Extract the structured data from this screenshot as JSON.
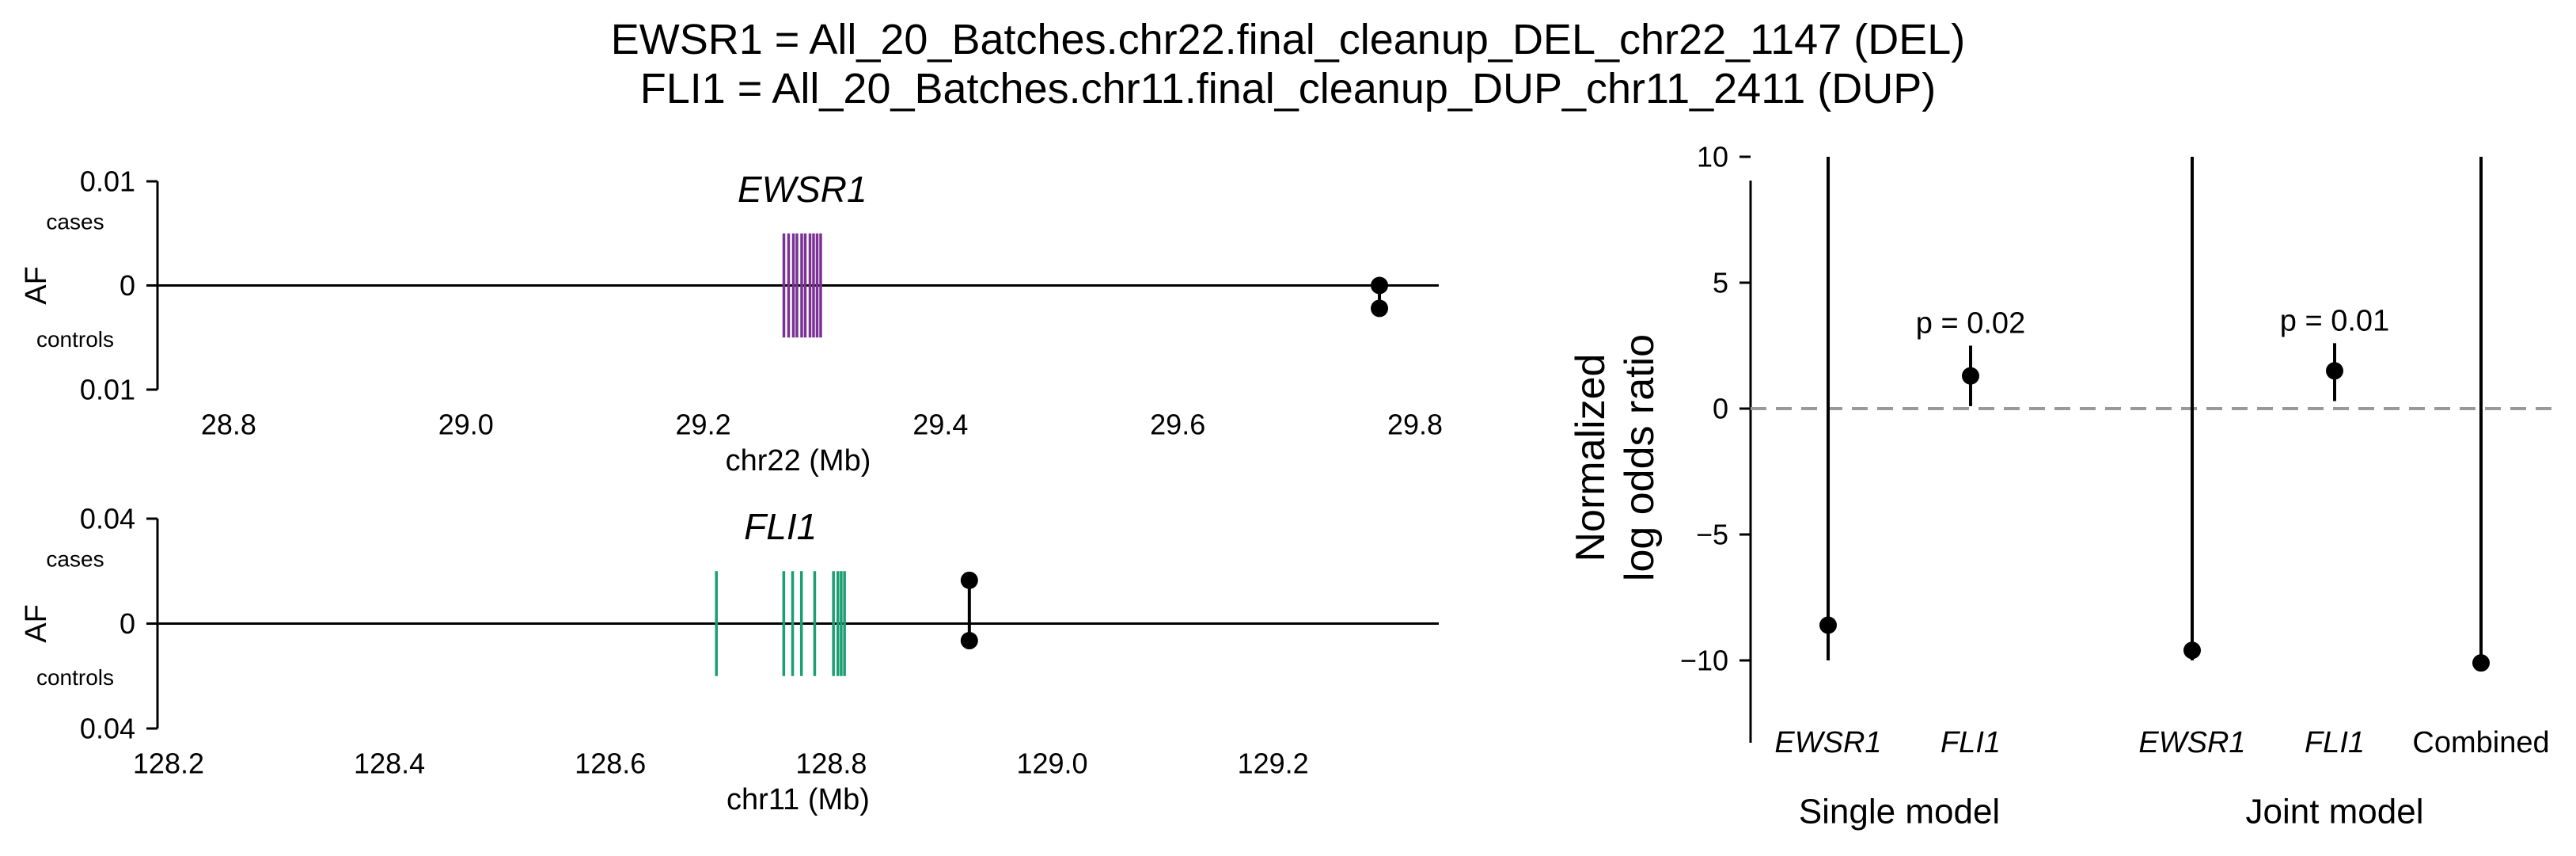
{
  "title": {
    "line1": "EWSR1 = All_20_Batches.chr22.final_cleanup_DEL_chr22_1147 (DEL)",
    "line2": "FLI1 = All_20_Batches.chr11.final_cleanup_DUP_chr11_2411 (DUP)"
  },
  "colors": {
    "ewsr1_gene": "#7b3294",
    "fli1_gene": "#1a9e72",
    "marker": "#000000",
    "reference_line": "#999999"
  },
  "chart_data": [
    {
      "type": "scatter",
      "gene": "EWSR1",
      "gene_color_key": "ewsr1_gene",
      "xlabel": "chr22 (Mb)",
      "ylabel": "AF",
      "ytick_labels": {
        "top": "0.01",
        "zero": "0",
        "bottom": "0.01"
      },
      "ylim": [
        -0.01,
        0.01
      ],
      "xlim": [
        28.74,
        29.82
      ],
      "xticks": [
        28.8,
        29.0,
        29.2,
        29.4,
        29.6,
        29.8
      ],
      "xtick_labels": [
        "28.8",
        "29.0",
        "29.2",
        "29.4",
        "29.6",
        "29.8"
      ],
      "case_label": "cases",
      "control_label": "controls",
      "gene_exons_mb": [
        29.268,
        29.272,
        29.276,
        29.279,
        29.283,
        29.286,
        29.29,
        29.293,
        29.296,
        29.299
      ],
      "gene_halfheight_af": 0.005,
      "variant": {
        "position_mb": 29.77,
        "af_cases": 0.0,
        "af_controls": -0.0022
      }
    },
    {
      "type": "scatter",
      "gene": "FLI1",
      "gene_color_key": "fli1_gene",
      "xlabel": "chr11 (Mb)",
      "ylabel": "AF",
      "ytick_labels": {
        "top": "0.04",
        "zero": "0",
        "bottom": "0.04"
      },
      "ylim": [
        -0.04,
        0.04
      ],
      "xlim": [
        128.19,
        129.35
      ],
      "xticks": [
        128.2,
        128.4,
        128.6,
        128.8,
        129.0,
        129.2
      ],
      "xtick_labels": [
        "128.2",
        "128.4",
        "128.6",
        "128.8",
        "129.0",
        "129.2"
      ],
      "case_label": "cases",
      "control_label": "controls",
      "gene_exons_mb": [
        128.696,
        128.757,
        128.765,
        128.773,
        128.785,
        128.802,
        128.806,
        128.809,
        128.812
      ],
      "gene_halfheight_af": 0.02,
      "variant": {
        "position_mb": 128.925,
        "af_cases": 0.0165,
        "af_controls": -0.0065
      }
    },
    {
      "type": "scatter",
      "ylabel_line1": "Normalized",
      "ylabel_line2": "log odds ratio",
      "ylim": [
        -11,
        11
      ],
      "yticks": [
        10,
        5,
        0,
        -5,
        -10
      ],
      "ytick_labels": [
        "10",
        "5",
        "0",
        "−5",
        "−10"
      ],
      "reference_y": 0,
      "categories": [
        "EWSR1",
        "FLI1",
        "EWSR1",
        "FLI1",
        "Combined"
      ],
      "category_styles": [
        "italic",
        "italic",
        "italic",
        "italic",
        "normal"
      ],
      "group_labels": [
        "Single model",
        "Joint model"
      ],
      "points": [
        {
          "estimate": -8.6,
          "ci_low": -10.0,
          "ci_high": 10.0,
          "pvalue": ""
        },
        {
          "estimate": 1.3,
          "ci_low": 0.1,
          "ci_high": 2.5,
          "pvalue": "p = 0.02"
        },
        {
          "estimate": -9.6,
          "ci_low": -10.0,
          "ci_high": 10.0,
          "pvalue": ""
        },
        {
          "estimate": 1.5,
          "ci_low": 0.3,
          "ci_high": 2.6,
          "pvalue": "p = 0.01"
        },
        {
          "estimate": -10.1,
          "ci_low": -10.1,
          "ci_high": 10.0,
          "pvalue": ""
        }
      ]
    }
  ]
}
